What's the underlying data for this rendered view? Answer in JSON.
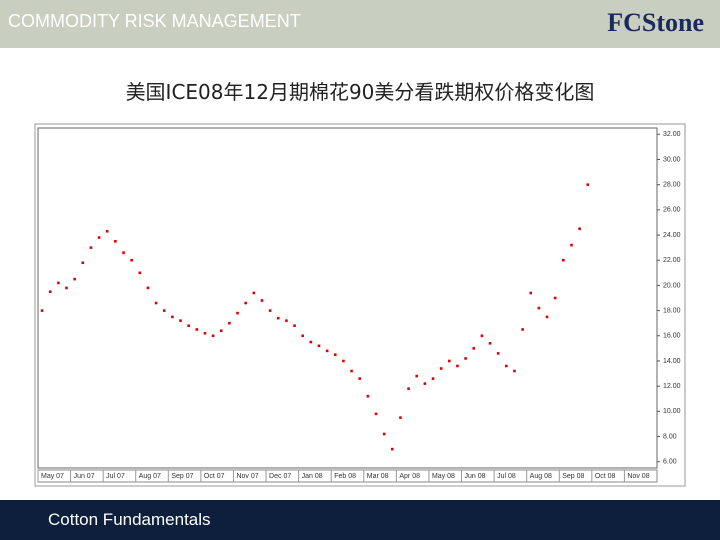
{
  "header": {
    "title": "COMMODITY RISK MANAGEMENT",
    "logo": "FCStone"
  },
  "footer": {
    "text": "Cotton Fundamentals"
  },
  "chart_data": {
    "type": "scatter",
    "title": "美国ICE08年12月期棉花90美分看跌期权价格变化图",
    "categories": [
      "May 07",
      null,
      null,
      null,
      "Jun 07",
      null,
      null,
      null,
      "Jul 07",
      null,
      null,
      null,
      "Aug 07",
      null,
      null,
      null,
      "Sep 07",
      null,
      null,
      null,
      "Oct 07",
      null,
      null,
      null,
      "Nov 07",
      null,
      null,
      null,
      "Dec 07",
      null,
      null,
      null,
      "Jan 08",
      null,
      null,
      null,
      "Feb 08",
      null,
      null,
      null,
      "Mar 08",
      null,
      null,
      null,
      "Apr 08",
      null,
      null,
      null,
      "May 08",
      null,
      null,
      null,
      "Jun 08",
      null,
      null,
      null,
      "Jul 08",
      null,
      null,
      null,
      "Aug 08",
      null,
      null,
      null,
      "Sep 08",
      null,
      null,
      null,
      "Oct 08",
      null,
      null,
      null,
      "Nov 08",
      null,
      null,
      null
    ],
    "values": [
      18.0,
      19.5,
      20.2,
      19.8,
      20.5,
      21.8,
      23.0,
      23.8,
      24.3,
      23.5,
      22.6,
      22.0,
      21.0,
      19.8,
      18.6,
      18.0,
      17.5,
      17.2,
      16.8,
      16.5,
      16.2,
      16.0,
      16.4,
      17.0,
      17.8,
      18.6,
      19.4,
      18.8,
      18.0,
      17.4,
      17.2,
      16.8,
      16.0,
      15.5,
      15.2,
      14.8,
      14.5,
      14.0,
      13.2,
      12.6,
      11.2,
      9.8,
      8.2,
      7.0,
      9.5,
      11.8,
      12.8,
      12.2,
      12.6,
      13.4,
      14.0,
      13.6,
      14.2,
      15.0,
      16.0,
      15.4,
      14.6,
      13.6,
      13.2,
      16.5,
      19.4,
      18.2,
      17.5,
      19.0,
      22.0,
      23.2,
      24.5,
      28.0,
      null,
      null,
      null,
      null,
      null,
      null,
      null,
      null
    ],
    "color": "#e00000",
    "ylim": [
      5.5,
      32.5
    ],
    "yticks": [
      {
        "value": 6,
        "label": "6.00"
      },
      {
        "value": 8,
        "label": "8.00"
      },
      {
        "value": 10,
        "label": "10.00"
      },
      {
        "value": 12,
        "label": "12.00"
      },
      {
        "value": 14,
        "label": "14.00"
      },
      {
        "value": 16,
        "label": "16.00"
      },
      {
        "value": 18,
        "label": "18.00"
      },
      {
        "value": 20,
        "label": "20.00"
      },
      {
        "value": 22,
        "label": "22.00"
      },
      {
        "value": 24,
        "label": "24.00"
      },
      {
        "value": 26,
        "label": "26.00"
      },
      {
        "value": 28,
        "label": "28.00"
      },
      {
        "value": 30,
        "label": "30.00"
      },
      {
        "value": 32,
        "label": "32.00"
      }
    ],
    "axis_side": "right"
  }
}
